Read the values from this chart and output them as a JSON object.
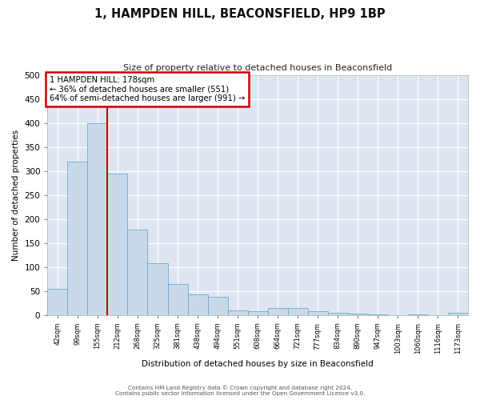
{
  "title": "1, HAMPDEN HILL, BEACONSFIELD, HP9 1BP",
  "subtitle": "Size of property relative to detached houses in Beaconsfield",
  "xlabel": "Distribution of detached houses by size in Beaconsfield",
  "ylabel": "Number of detached properties",
  "bin_labels": [
    "42sqm",
    "99sqm",
    "155sqm",
    "212sqm",
    "268sqm",
    "325sqm",
    "381sqm",
    "438sqm",
    "494sqm",
    "551sqm",
    "608sqm",
    "664sqm",
    "721sqm",
    "777sqm",
    "834sqm",
    "890sqm",
    "947sqm",
    "1003sqm",
    "1060sqm",
    "1116sqm",
    "1173sqm"
  ],
  "bar_heights": [
    55,
    320,
    400,
    295,
    178,
    107,
    65,
    42,
    37,
    10,
    7,
    14,
    14,
    7,
    5,
    2,
    1,
    0,
    1,
    0,
    5
  ],
  "bar_color": "#c9d9ea",
  "bar_edge_color": "#6aaad4",
  "vline_x_index": 2.5,
  "vline_color": "#cc0000",
  "annotation_title": "1 HAMPDEN HILL: 178sqm",
  "annotation_line1": "← 36% of detached houses are smaller (551)",
  "annotation_line2": "64% of semi-detached houses are larger (991) →",
  "annotation_box_color": "#ffffff",
  "annotation_box_edge": "#cc0000",
  "ylim": [
    0,
    500
  ],
  "yticks": [
    0,
    50,
    100,
    150,
    200,
    250,
    300,
    350,
    400,
    450,
    500
  ],
  "footer1": "Contains HM Land Registry data © Crown copyright and database right 2024.",
  "footer2": "Contains public sector information licensed under the Open Government Licence v3.0.",
  "fig_bg_color": "#ffffff",
  "plot_bg_color": "#dde6f0"
}
